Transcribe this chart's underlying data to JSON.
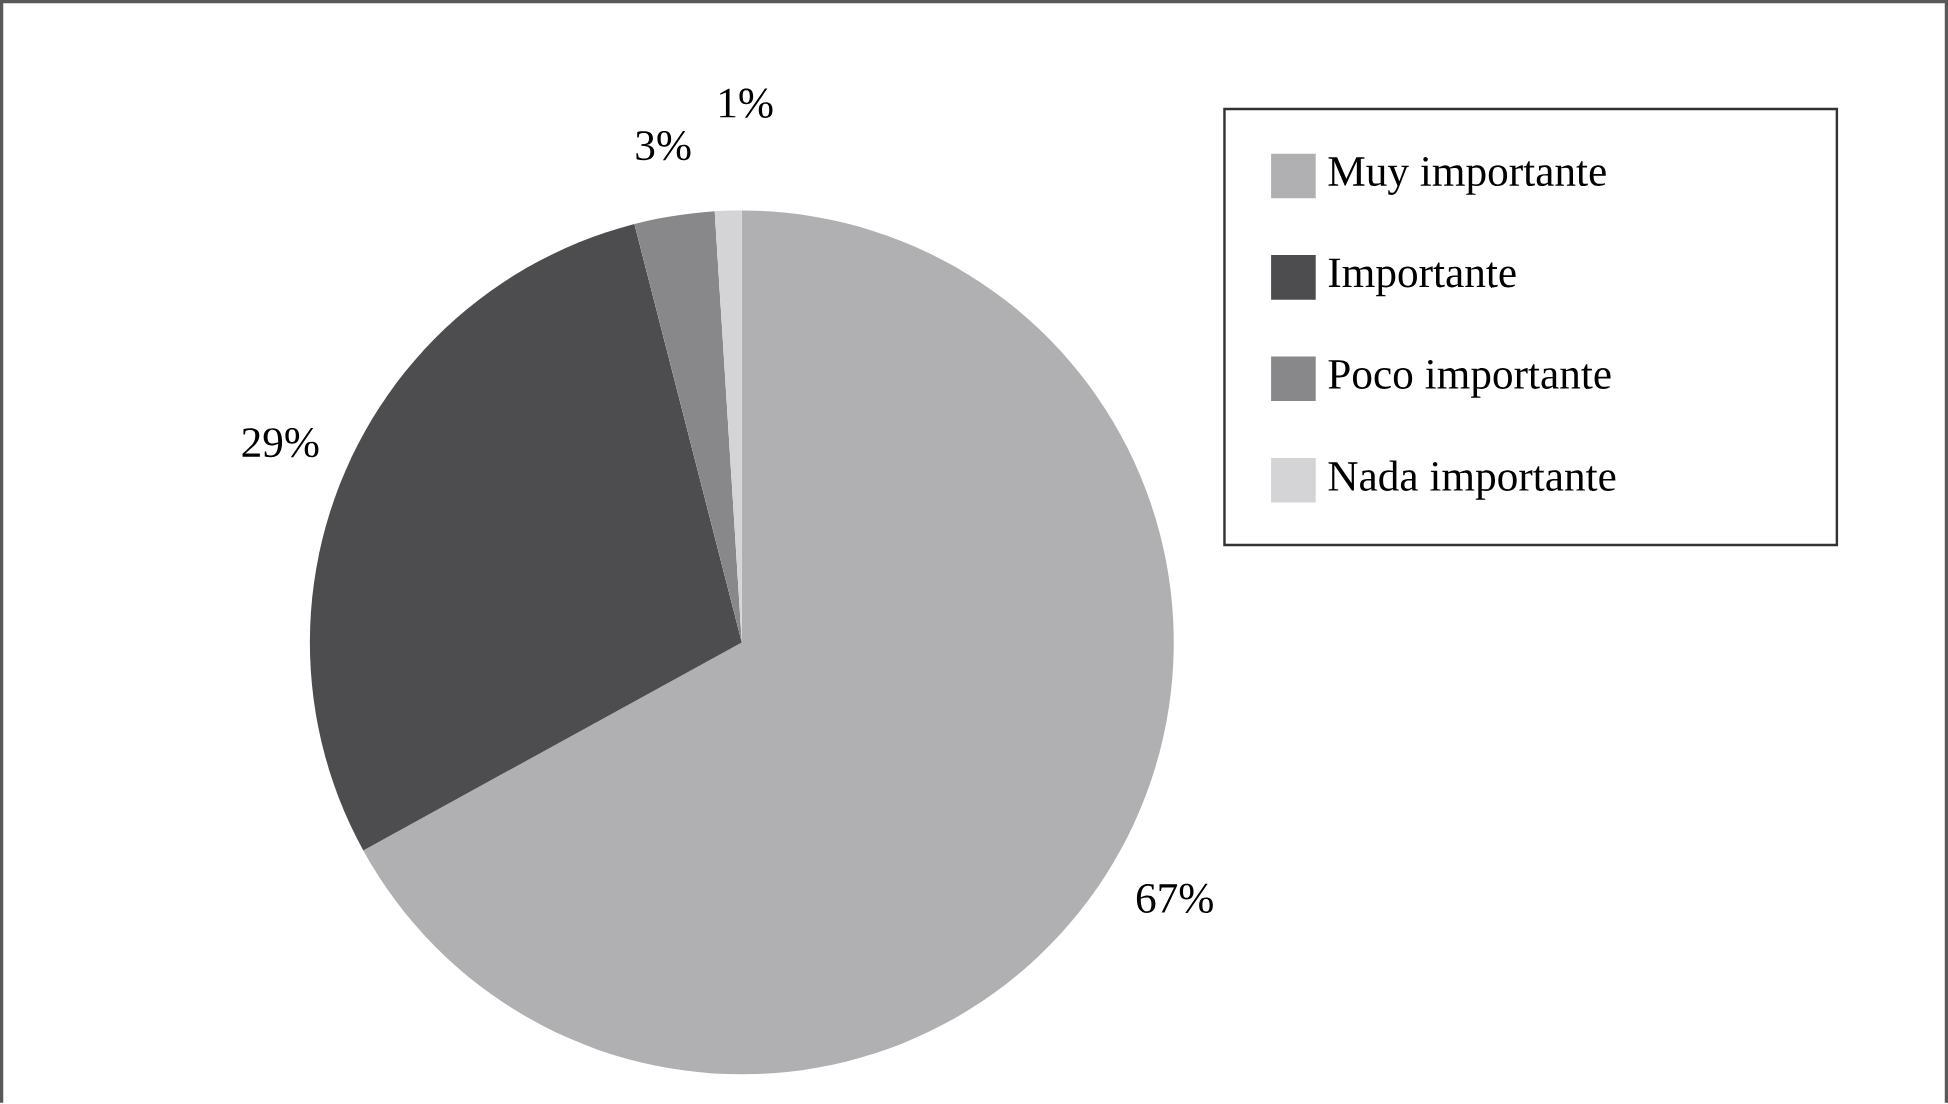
{
  "chart_data": {
    "type": "pie",
    "categories": [
      "Muy importante",
      "Importante",
      "Poco importante",
      "Nada importante"
    ],
    "values": [
      67,
      29,
      3,
      1
    ],
    "colors": [
      "#b0b0b3",
      "#4d4d50",
      "#88888b",
      "#d4d4d7"
    ],
    "value_labels": [
      "67%",
      "29%",
      "3%",
      "1%"
    ],
    "legend": "top right"
  }
}
